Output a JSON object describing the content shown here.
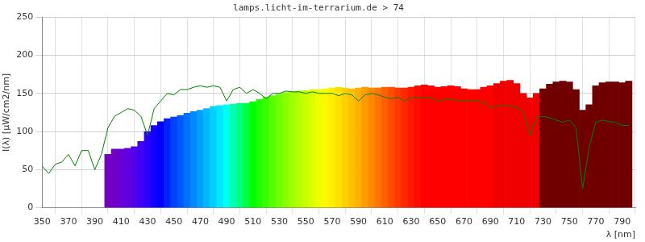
{
  "chart_data": {
    "type": "bar",
    "title": "lamps.licht-im-terrarium.de > 74",
    "x_label": "λ [nm]",
    "y_label": "I(λ) [µW/cm2/nm]",
    "xlim": [
      350,
      800
    ],
    "xticks": [
      350,
      370,
      390,
      410,
      430,
      450,
      470,
      490,
      510,
      530,
      550,
      570,
      590,
      610,
      630,
      650,
      670,
      690,
      710,
      730,
      750,
      770,
      790
    ],
    "ylim": [
      0,
      250
    ],
    "yticks": [
      0,
      50,
      100,
      150,
      200,
      250
    ],
    "grid": true,
    "series": [
      {
        "type": "bar",
        "x": [
          400,
          405,
          410,
          415,
          420,
          425,
          430,
          435,
          440,
          445,
          450,
          455,
          460,
          465,
          470,
          475,
          480,
          485,
          490,
          495,
          500,
          505,
          510,
          515,
          520,
          525,
          530,
          535,
          540,
          545,
          550,
          555,
          560,
          565,
          570,
          575,
          580,
          585,
          590,
          595,
          600,
          605,
          610,
          615,
          620,
          625,
          630,
          635,
          640,
          645,
          650,
          655,
          660,
          665,
          670,
          675,
          680,
          685,
          690,
          695,
          700,
          705,
          710,
          715,
          720,
          725,
          730,
          735,
          740,
          745,
          750,
          755,
          760,
          765,
          770,
          775,
          780,
          785,
          790,
          795
        ],
        "values": [
          70,
          77,
          77,
          78,
          80,
          87,
          100,
          108,
          113,
          117,
          119,
          121,
          124,
          126,
          128,
          130,
          133,
          134,
          135,
          136,
          137,
          137,
          139,
          142,
          145,
          147,
          149,
          151,
          152,
          153,
          154,
          155,
          155,
          156,
          157,
          158,
          157,
          156,
          157,
          158,
          157,
          157,
          158,
          158,
          157,
          157,
          158,
          160,
          161,
          160,
          158,
          159,
          160,
          159,
          156,
          155,
          155,
          158,
          160,
          163,
          166,
          167,
          163,
          150,
          144,
          150,
          156,
          162,
          165,
          166,
          165,
          155,
          128,
          135,
          160,
          164,
          165,
          165,
          164,
          166
        ],
        "colors": [
          "#7600c0",
          "#7000c8",
          "#6a00d4",
          "#6000e0",
          "#5200ec",
          "#4000f4",
          "#2c00ff",
          "#1400ff",
          "#0000ff",
          "#0020ff",
          "#0040ff",
          "#0058ff",
          "#0070ff",
          "#0088ff",
          "#00a0ff",
          "#00b8ff",
          "#00d0ff",
          "#00e8ff",
          "#00fff0",
          "#00ffb0",
          "#00ff80",
          "#00ff40",
          "#00ff00",
          "#20ff00",
          "#3cff00",
          "#58ff00",
          "#70ff00",
          "#88ff00",
          "#a0ff00",
          "#b4ff00",
          "#c8ff00",
          "#dcff00",
          "#f0ff00",
          "#fff800",
          "#ffee00",
          "#ffe000",
          "#ffd000",
          "#ffc000",
          "#ffb000",
          "#ff9c00",
          "#ff8800",
          "#ff7400",
          "#ff6000",
          "#ff4c00",
          "#ff3800",
          "#ff2800",
          "#ff1800",
          "#ff0c00",
          "#ff0000",
          "#ff0000",
          "#ff0000",
          "#ff0000",
          "#ff0000",
          "#ff0000",
          "#ff0000",
          "#ff0000",
          "#ff0000",
          "#ff0000",
          "#ff0000",
          "#f00000",
          "#f00000",
          "#f00000",
          "#f00000",
          "#f00000",
          "#f00000",
          "#f00000",
          "#700000",
          "#700000",
          "#700000",
          "#700000",
          "#700000",
          "#700000",
          "#700000",
          "#700000",
          "#700000",
          "#700000",
          "#700000",
          "#700000",
          "#700000",
          "#700000"
        ]
      },
      {
        "type": "line",
        "color": "#008000",
        "line_style": "solid",
        "x": [
          350,
          355,
          360,
          365,
          370,
          375,
          380,
          385,
          390,
          395,
          400,
          405,
          410,
          415,
          420,
          425,
          430,
          435,
          440,
          445,
          450,
          455,
          460,
          465,
          470,
          475,
          480,
          485,
          490,
          495,
          500,
          505,
          510,
          515,
          520,
          525,
          530,
          535,
          540,
          545,
          550,
          555,
          560,
          565,
          570,
          575,
          580,
          585,
          590,
          595,
          600,
          605,
          610,
          615,
          620,
          625,
          630,
          635,
          640,
          645,
          650,
          655,
          660,
          665,
          670,
          675,
          680,
          685,
          690,
          695,
          700,
          705,
          710,
          715,
          720,
          725,
          730,
          735,
          740,
          745,
          750,
          755,
          760,
          765,
          770,
          775,
          780,
          785,
          790,
          795
        ],
        "values": [
          55,
          45,
          57,
          60,
          70,
          55,
          75,
          75,
          50,
          70,
          105,
          120,
          125,
          130,
          128,
          120,
          95,
          130,
          140,
          150,
          148,
          155,
          155,
          158,
          160,
          158,
          160,
          158,
          140,
          155,
          158,
          150,
          155,
          150,
          143,
          150,
          150,
          153,
          152,
          152,
          150,
          152,
          150,
          150,
          150,
          147,
          150,
          148,
          140,
          148,
          150,
          148,
          145,
          143,
          145,
          140,
          145,
          145,
          145,
          144,
          140,
          142,
          143,
          140,
          140,
          140,
          140,
          138,
          132,
          133,
          135,
          133,
          132,
          125,
          95,
          118,
          120,
          118,
          115,
          112,
          115,
          105,
          25,
          80,
          112,
          115,
          113,
          112,
          108,
          108
        ]
      }
    ]
  }
}
